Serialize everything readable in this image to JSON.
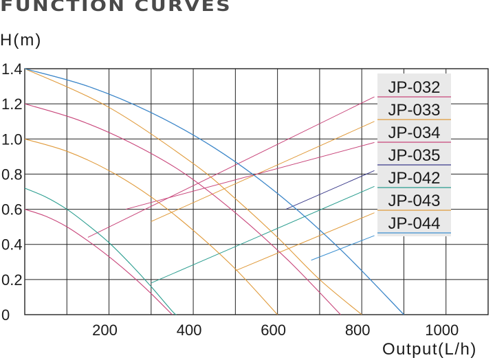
{
  "header": {
    "title": "FUNCTION CURVES"
  },
  "chart_data": {
    "type": "line",
    "title": "FUNCTION CURVES",
    "ylabel": "H(m)",
    "xlabel": "Output(L/h)",
    "xlim": [
      0,
      1100
    ],
    "ylim": [
      0,
      1.4
    ],
    "xticks": [
      200,
      400,
      600,
      800,
      1000
    ],
    "yticks": [
      0,
      0.2,
      0.4,
      0.6,
      0.8,
      1.0,
      1.2,
      1.4
    ],
    "ytick_labels": [
      "0",
      "0.2",
      "0.4",
      "0.6",
      "0.8",
      "1.0",
      "1.2",
      "1.4"
    ],
    "xtick_labels": [
      "200",
      "400",
      "600",
      "800",
      "1000"
    ],
    "grid": true,
    "legend_position": "top-right",
    "series": [
      {
        "name": "JP-032",
        "color": "#c8457a",
        "x": [
          0,
          50,
          100,
          150,
          200,
          250,
          300,
          350
        ],
        "y": [
          0.6,
          0.56,
          0.5,
          0.42,
          0.33,
          0.23,
          0.12,
          0
        ]
      },
      {
        "name": "JP-033",
        "color": "#e09a3a",
        "x": [
          0,
          100,
          200,
          300,
          400,
          500,
          600
        ],
        "y": [
          1.0,
          0.93,
          0.82,
          0.67,
          0.48,
          0.26,
          0
        ]
      },
      {
        "name": "JP-034",
        "color": "#c8457a",
        "x": [
          0,
          125,
          250,
          375,
          500,
          625,
          750
        ],
        "y": [
          1.2,
          1.11,
          0.98,
          0.81,
          0.58,
          0.31,
          0
        ]
      },
      {
        "name": "JP-035",
        "color": "#3a3a8a",
        "x": [
          0,
          150,
          300,
          450,
          600,
          750,
          900
        ],
        "y": [
          1.4,
          1.3,
          1.15,
          0.95,
          0.69,
          0.37,
          0
        ]
      },
      {
        "name": "JP-042",
        "color": "#2a9d8f",
        "x": [
          0,
          50,
          100,
          150,
          200,
          250,
          300,
          350,
          360
        ],
        "y": [
          0.72,
          0.67,
          0.6,
          0.51,
          0.41,
          0.29,
          0.16,
          0.02,
          0
        ]
      },
      {
        "name": "JP-043",
        "color": "#e09a3a",
        "x": [
          0,
          200,
          400,
          500,
          600,
          700,
          800
        ],
        "y": [
          1.4,
          1.18,
          0.86,
          0.66,
          0.44,
          0.2,
          0
        ]
      },
      {
        "name": "JP-044",
        "color": "#3a8fd0",
        "x": [
          0,
          150,
          300,
          450,
          600,
          750,
          900
        ],
        "y": [
          1.4,
          1.3,
          1.15,
          0.95,
          0.69,
          0.37,
          0
        ]
      }
    ],
    "leader_lines": [
      {
        "series": "JP-032",
        "color": "#c8457a",
        "from": [
          150,
          0.44
        ],
        "to": [
          830,
          1.24
        ]
      },
      {
        "series": "JP-033",
        "color": "#e09a3a",
        "from": [
          300,
          0.53
        ],
        "to": [
          830,
          1.1
        ]
      },
      {
        "series": "JP-034",
        "color": "#c8457a",
        "from": [
          240,
          0.6
        ],
        "to": [
          830,
          0.98
        ]
      },
      {
        "series": "JP-035",
        "color": "#3a3a8a",
        "from": [
          620,
          0.6
        ],
        "to": [
          830,
          0.82
        ]
      },
      {
        "series": "JP-042",
        "color": "#2a9d8f",
        "from": [
          300,
          0.18
        ],
        "to": [
          830,
          0.73
        ]
      },
      {
        "series": "JP-043",
        "color": "#e09a3a",
        "from": [
          500,
          0.25
        ],
        "to": [
          830,
          0.58
        ]
      },
      {
        "series": "JP-044",
        "color": "#3a8fd0",
        "from": [
          680,
          0.31
        ],
        "to": [
          830,
          0.45
        ]
      }
    ]
  }
}
